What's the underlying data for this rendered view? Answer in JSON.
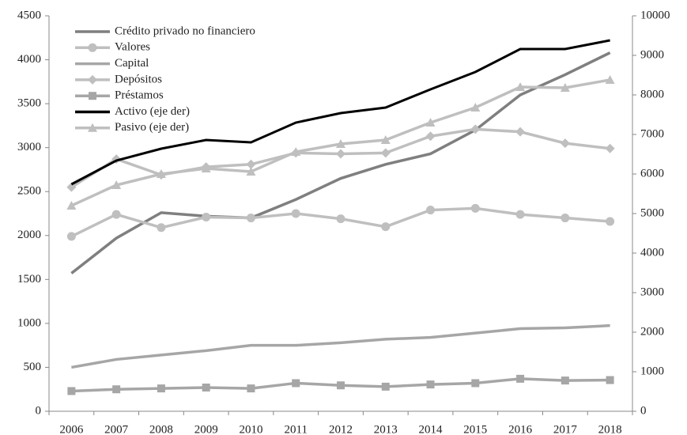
{
  "chart_data": {
    "type": "line",
    "categories": [
      "2006",
      "2007",
      "2008",
      "2009",
      "2010",
      "2011",
      "2012",
      "2013",
      "2014",
      "2015",
      "2016",
      "2017",
      "2018"
    ],
    "series": [
      {
        "name": "Crédito privado no financiero",
        "color": "#7f7f7f",
        "marker": "none",
        "values": [
          1570,
          1970,
          2260,
          2220,
          2200,
          2410,
          2650,
          2810,
          2930,
          3200,
          3600,
          3830,
          4080
        ]
      },
      {
        "name": "Valores",
        "color": "#bfbfbf",
        "marker": "circle",
        "values": [
          1990,
          2240,
          2090,
          2210,
          2200,
          2250,
          2190,
          2100,
          2290,
          2310,
          2240,
          2200,
          2160
        ]
      },
      {
        "name": "Capital",
        "color": "#a6a6a6",
        "marker": "none",
        "values": [
          500,
          590,
          640,
          690,
          750,
          750,
          780,
          820,
          840,
          890,
          940,
          950,
          975
        ]
      },
      {
        "name": "Depósitos",
        "color": "#bfbfbf",
        "marker": "diamond",
        "values": [
          2550,
          2870,
          2690,
          2780,
          2810,
          2940,
          2930,
          2940,
          3130,
          3210,
          3180,
          3050,
          2990
        ]
      },
      {
        "name": "Préstamos",
        "color": "#a6a6a6",
        "marker": "square",
        "values": [
          230,
          250,
          260,
          270,
          260,
          320,
          295,
          280,
          305,
          320,
          370,
          350,
          355
        ]
      },
      {
        "name": "Activo (eje der)",
        "color": "#000000",
        "marker": "none",
        "axis": "y2",
        "values": [
          5740,
          6340,
          6640,
          6860,
          6800,
          7300,
          7540,
          7680,
          8140,
          8580,
          9160,
          9160,
          9380
        ]
      },
      {
        "name": "Pasivo (eje der)",
        "color": "#bfbfbf",
        "marker": "triangle",
        "axis": "y2",
        "values": [
          5200,
          5720,
          6000,
          6140,
          6060,
          6560,
          6760,
          6860,
          7300,
          7680,
          8200,
          8180,
          8380
        ]
      }
    ],
    "ylim": [
      0,
      4500
    ],
    "yticks": [
      0,
      500,
      1000,
      1500,
      2000,
      2500,
      3000,
      3500,
      4000,
      4500
    ],
    "y2lim": [
      0,
      10000
    ],
    "y2ticks": [
      0,
      1000,
      2000,
      3000,
      4000,
      5000,
      6000,
      7000,
      8000,
      9000,
      10000
    ],
    "legend": "upper left",
    "grid": false
  }
}
